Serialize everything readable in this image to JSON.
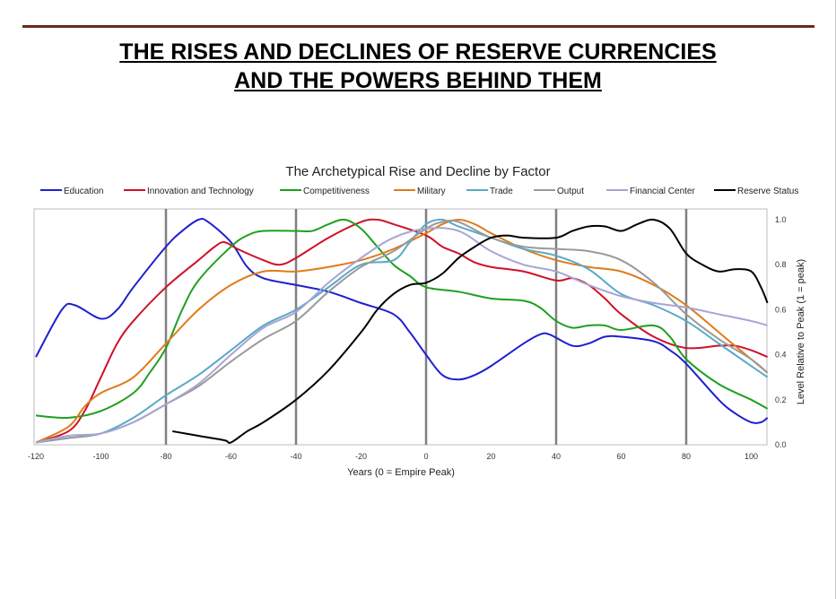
{
  "header": {
    "title_line1": "THE RISES AND DECLINES OF RESERVE CURRENCIES",
    "title_line2": "AND THE POWERS BEHIND THEM"
  },
  "chart_data": {
    "type": "line",
    "title": "The Archetypical Rise and Decline by Factor",
    "xlabel": "Years (0 = Empire Peak)",
    "ylabel": "Level Relative to Peak (1 = peak)",
    "xlim": [
      -120,
      105
    ],
    "ylim": [
      0,
      1.05
    ],
    "xticks": [
      -120,
      -100,
      -80,
      -60,
      -40,
      -20,
      0,
      20,
      40,
      60,
      80,
      100
    ],
    "yticks": [
      "0.0",
      "0.2",
      "0.4",
      "0.6",
      "0.8",
      "1.0"
    ],
    "vlines": [
      -80,
      -40,
      0,
      40,
      80
    ],
    "legend_position": "top",
    "series": [
      {
        "name": "Education",
        "color": "#1f1fcf",
        "points": [
          [
            -120,
            0.39
          ],
          [
            -112,
            0.6
          ],
          [
            -108,
            0.62
          ],
          [
            -100,
            0.56
          ],
          [
            -95,
            0.6
          ],
          [
            -90,
            0.7
          ],
          [
            -80,
            0.88
          ],
          [
            -75,
            0.95
          ],
          [
            -70,
            1.0
          ],
          [
            -67,
            0.99
          ],
          [
            -60,
            0.9
          ],
          [
            -55,
            0.79
          ],
          [
            -50,
            0.74
          ],
          [
            -40,
            0.71
          ],
          [
            -30,
            0.68
          ],
          [
            -20,
            0.63
          ],
          [
            -10,
            0.58
          ],
          [
            -5,
            0.5
          ],
          [
            0,
            0.4
          ],
          [
            5,
            0.31
          ],
          [
            10,
            0.29
          ],
          [
            15,
            0.31
          ],
          [
            20,
            0.35
          ],
          [
            30,
            0.45
          ],
          [
            35,
            0.49
          ],
          [
            38,
            0.49
          ],
          [
            45,
            0.44
          ],
          [
            50,
            0.45
          ],
          [
            55,
            0.48
          ],
          [
            60,
            0.48
          ],
          [
            70,
            0.46
          ],
          [
            75,
            0.42
          ],
          [
            80,
            0.36
          ],
          [
            90,
            0.2
          ],
          [
            95,
            0.14
          ],
          [
            100,
            0.1
          ],
          [
            103,
            0.1
          ],
          [
            105,
            0.12
          ]
        ]
      },
      {
        "name": "Innovation and Technology",
        "color": "#d0102a",
        "points": [
          [
            -120,
            0.01
          ],
          [
            -110,
            0.06
          ],
          [
            -105,
            0.15
          ],
          [
            -100,
            0.3
          ],
          [
            -95,
            0.45
          ],
          [
            -90,
            0.55
          ],
          [
            -80,
            0.7
          ],
          [
            -70,
            0.82
          ],
          [
            -65,
            0.88
          ],
          [
            -62,
            0.9
          ],
          [
            -58,
            0.87
          ],
          [
            -50,
            0.82
          ],
          [
            -45,
            0.8
          ],
          [
            -40,
            0.83
          ],
          [
            -30,
            0.92
          ],
          [
            -20,
            0.99
          ],
          [
            -15,
            1.0
          ],
          [
            -10,
            0.98
          ],
          [
            0,
            0.93
          ],
          [
            5,
            0.88
          ],
          [
            10,
            0.85
          ],
          [
            15,
            0.81
          ],
          [
            20,
            0.79
          ],
          [
            30,
            0.77
          ],
          [
            40,
            0.73
          ],
          [
            45,
            0.74
          ],
          [
            50,
            0.71
          ],
          [
            55,
            0.65
          ],
          [
            60,
            0.58
          ],
          [
            70,
            0.48
          ],
          [
            80,
            0.43
          ],
          [
            90,
            0.44
          ],
          [
            95,
            0.44
          ],
          [
            100,
            0.42
          ],
          [
            105,
            0.39
          ]
        ]
      },
      {
        "name": "Competitiveness",
        "color": "#1ea01e",
        "points": [
          [
            -120,
            0.13
          ],
          [
            -110,
            0.12
          ],
          [
            -100,
            0.15
          ],
          [
            -90,
            0.23
          ],
          [
            -85,
            0.32
          ],
          [
            -80,
            0.43
          ],
          [
            -75,
            0.6
          ],
          [
            -70,
            0.73
          ],
          [
            -60,
            0.88
          ],
          [
            -55,
            0.93
          ],
          [
            -50,
            0.95
          ],
          [
            -40,
            0.95
          ],
          [
            -35,
            0.95
          ],
          [
            -30,
            0.98
          ],
          [
            -25,
            1.0
          ],
          [
            -20,
            0.96
          ],
          [
            -15,
            0.88
          ],
          [
            -10,
            0.8
          ],
          [
            -5,
            0.75
          ],
          [
            0,
            0.7
          ],
          [
            10,
            0.68
          ],
          [
            20,
            0.65
          ],
          [
            30,
            0.64
          ],
          [
            35,
            0.61
          ],
          [
            40,
            0.55
          ],
          [
            45,
            0.52
          ],
          [
            50,
            0.53
          ],
          [
            55,
            0.53
          ],
          [
            60,
            0.51
          ],
          [
            70,
            0.53
          ],
          [
            75,
            0.48
          ],
          [
            80,
            0.38
          ],
          [
            90,
            0.27
          ],
          [
            100,
            0.2
          ],
          [
            105,
            0.16
          ]
        ]
      },
      {
        "name": "Military",
        "color": "#e07b1a",
        "points": [
          [
            -120,
            0.01
          ],
          [
            -110,
            0.08
          ],
          [
            -105,
            0.17
          ],
          [
            -100,
            0.23
          ],
          [
            -90,
            0.3
          ],
          [
            -80,
            0.45
          ],
          [
            -70,
            0.6
          ],
          [
            -60,
            0.71
          ],
          [
            -50,
            0.77
          ],
          [
            -40,
            0.77
          ],
          [
            -30,
            0.79
          ],
          [
            -20,
            0.82
          ],
          [
            -10,
            0.87
          ],
          [
            0,
            0.94
          ],
          [
            5,
            0.98
          ],
          [
            10,
            1.0
          ],
          [
            15,
            0.98
          ],
          [
            20,
            0.94
          ],
          [
            30,
            0.87
          ],
          [
            40,
            0.82
          ],
          [
            50,
            0.79
          ],
          [
            60,
            0.77
          ],
          [
            70,
            0.71
          ],
          [
            80,
            0.62
          ],
          [
            90,
            0.5
          ],
          [
            100,
            0.38
          ],
          [
            105,
            0.32
          ]
        ]
      },
      {
        "name": "Trade",
        "color": "#5aa9c8",
        "points": [
          [
            -120,
            0.01
          ],
          [
            -110,
            0.03
          ],
          [
            -100,
            0.05
          ],
          [
            -90,
            0.12
          ],
          [
            -80,
            0.22
          ],
          [
            -70,
            0.31
          ],
          [
            -60,
            0.42
          ],
          [
            -50,
            0.53
          ],
          [
            -40,
            0.6
          ],
          [
            -30,
            0.7
          ],
          [
            -20,
            0.8
          ],
          [
            -10,
            0.82
          ],
          [
            -5,
            0.9
          ],
          [
            0,
            0.98
          ],
          [
            5,
            1.0
          ],
          [
            10,
            0.97
          ],
          [
            20,
            0.92
          ],
          [
            30,
            0.87
          ],
          [
            40,
            0.84
          ],
          [
            50,
            0.78
          ],
          [
            60,
            0.67
          ],
          [
            70,
            0.62
          ],
          [
            80,
            0.55
          ],
          [
            90,
            0.45
          ],
          [
            100,
            0.35
          ],
          [
            105,
            0.3
          ]
        ]
      },
      {
        "name": "Output",
        "color": "#9a9a9a",
        "points": [
          [
            -120,
            0.01
          ],
          [
            -110,
            0.03
          ],
          [
            -100,
            0.05
          ],
          [
            -90,
            0.1
          ],
          [
            -80,
            0.18
          ],
          [
            -70,
            0.26
          ],
          [
            -60,
            0.37
          ],
          [
            -50,
            0.47
          ],
          [
            -40,
            0.55
          ],
          [
            -30,
            0.68
          ],
          [
            -20,
            0.79
          ],
          [
            -10,
            0.86
          ],
          [
            0,
            0.96
          ],
          [
            5,
            0.99
          ],
          [
            10,
            0.99
          ],
          [
            20,
            0.92
          ],
          [
            30,
            0.88
          ],
          [
            40,
            0.87
          ],
          [
            50,
            0.86
          ],
          [
            60,
            0.82
          ],
          [
            70,
            0.72
          ],
          [
            80,
            0.58
          ],
          [
            90,
            0.47
          ],
          [
            100,
            0.38
          ],
          [
            105,
            0.32
          ]
        ]
      },
      {
        "name": "Financial Center",
        "color": "#a8a4d4",
        "points": [
          [
            -120,
            0.01
          ],
          [
            -110,
            0.04
          ],
          [
            -100,
            0.05
          ],
          [
            -90,
            0.1
          ],
          [
            -80,
            0.18
          ],
          [
            -70,
            0.27
          ],
          [
            -60,
            0.4
          ],
          [
            -50,
            0.52
          ],
          [
            -40,
            0.59
          ],
          [
            -30,
            0.72
          ],
          [
            -20,
            0.83
          ],
          [
            -10,
            0.92
          ],
          [
            0,
            0.96
          ],
          [
            10,
            0.95
          ],
          [
            20,
            0.86
          ],
          [
            30,
            0.8
          ],
          [
            40,
            0.77
          ],
          [
            50,
            0.71
          ],
          [
            60,
            0.66
          ],
          [
            70,
            0.63
          ],
          [
            80,
            0.61
          ],
          [
            90,
            0.58
          ],
          [
            100,
            0.55
          ],
          [
            105,
            0.53
          ]
        ]
      },
      {
        "name": "Reserve Status",
        "color": "#000000",
        "points": [
          [
            -78,
            0.06
          ],
          [
            -70,
            0.04
          ],
          [
            -62,
            0.02
          ],
          [
            -60,
            0.01
          ],
          [
            -55,
            0.06
          ],
          [
            -50,
            0.1
          ],
          [
            -40,
            0.2
          ],
          [
            -30,
            0.33
          ],
          [
            -20,
            0.5
          ],
          [
            -15,
            0.6
          ],
          [
            -10,
            0.67
          ],
          [
            -5,
            0.71
          ],
          [
            0,
            0.72
          ],
          [
            5,
            0.76
          ],
          [
            10,
            0.83
          ],
          [
            15,
            0.88
          ],
          [
            20,
            0.92
          ],
          [
            25,
            0.93
          ],
          [
            30,
            0.92
          ],
          [
            40,
            0.92
          ],
          [
            45,
            0.95
          ],
          [
            50,
            0.97
          ],
          [
            55,
            0.97
          ],
          [
            60,
            0.95
          ],
          [
            65,
            0.98
          ],
          [
            70,
            1.0
          ],
          [
            75,
            0.96
          ],
          [
            80,
            0.85
          ],
          [
            85,
            0.8
          ],
          [
            90,
            0.77
          ],
          [
            95,
            0.78
          ],
          [
            100,
            0.77
          ],
          [
            103,
            0.7
          ],
          [
            105,
            0.63
          ]
        ]
      }
    ]
  }
}
